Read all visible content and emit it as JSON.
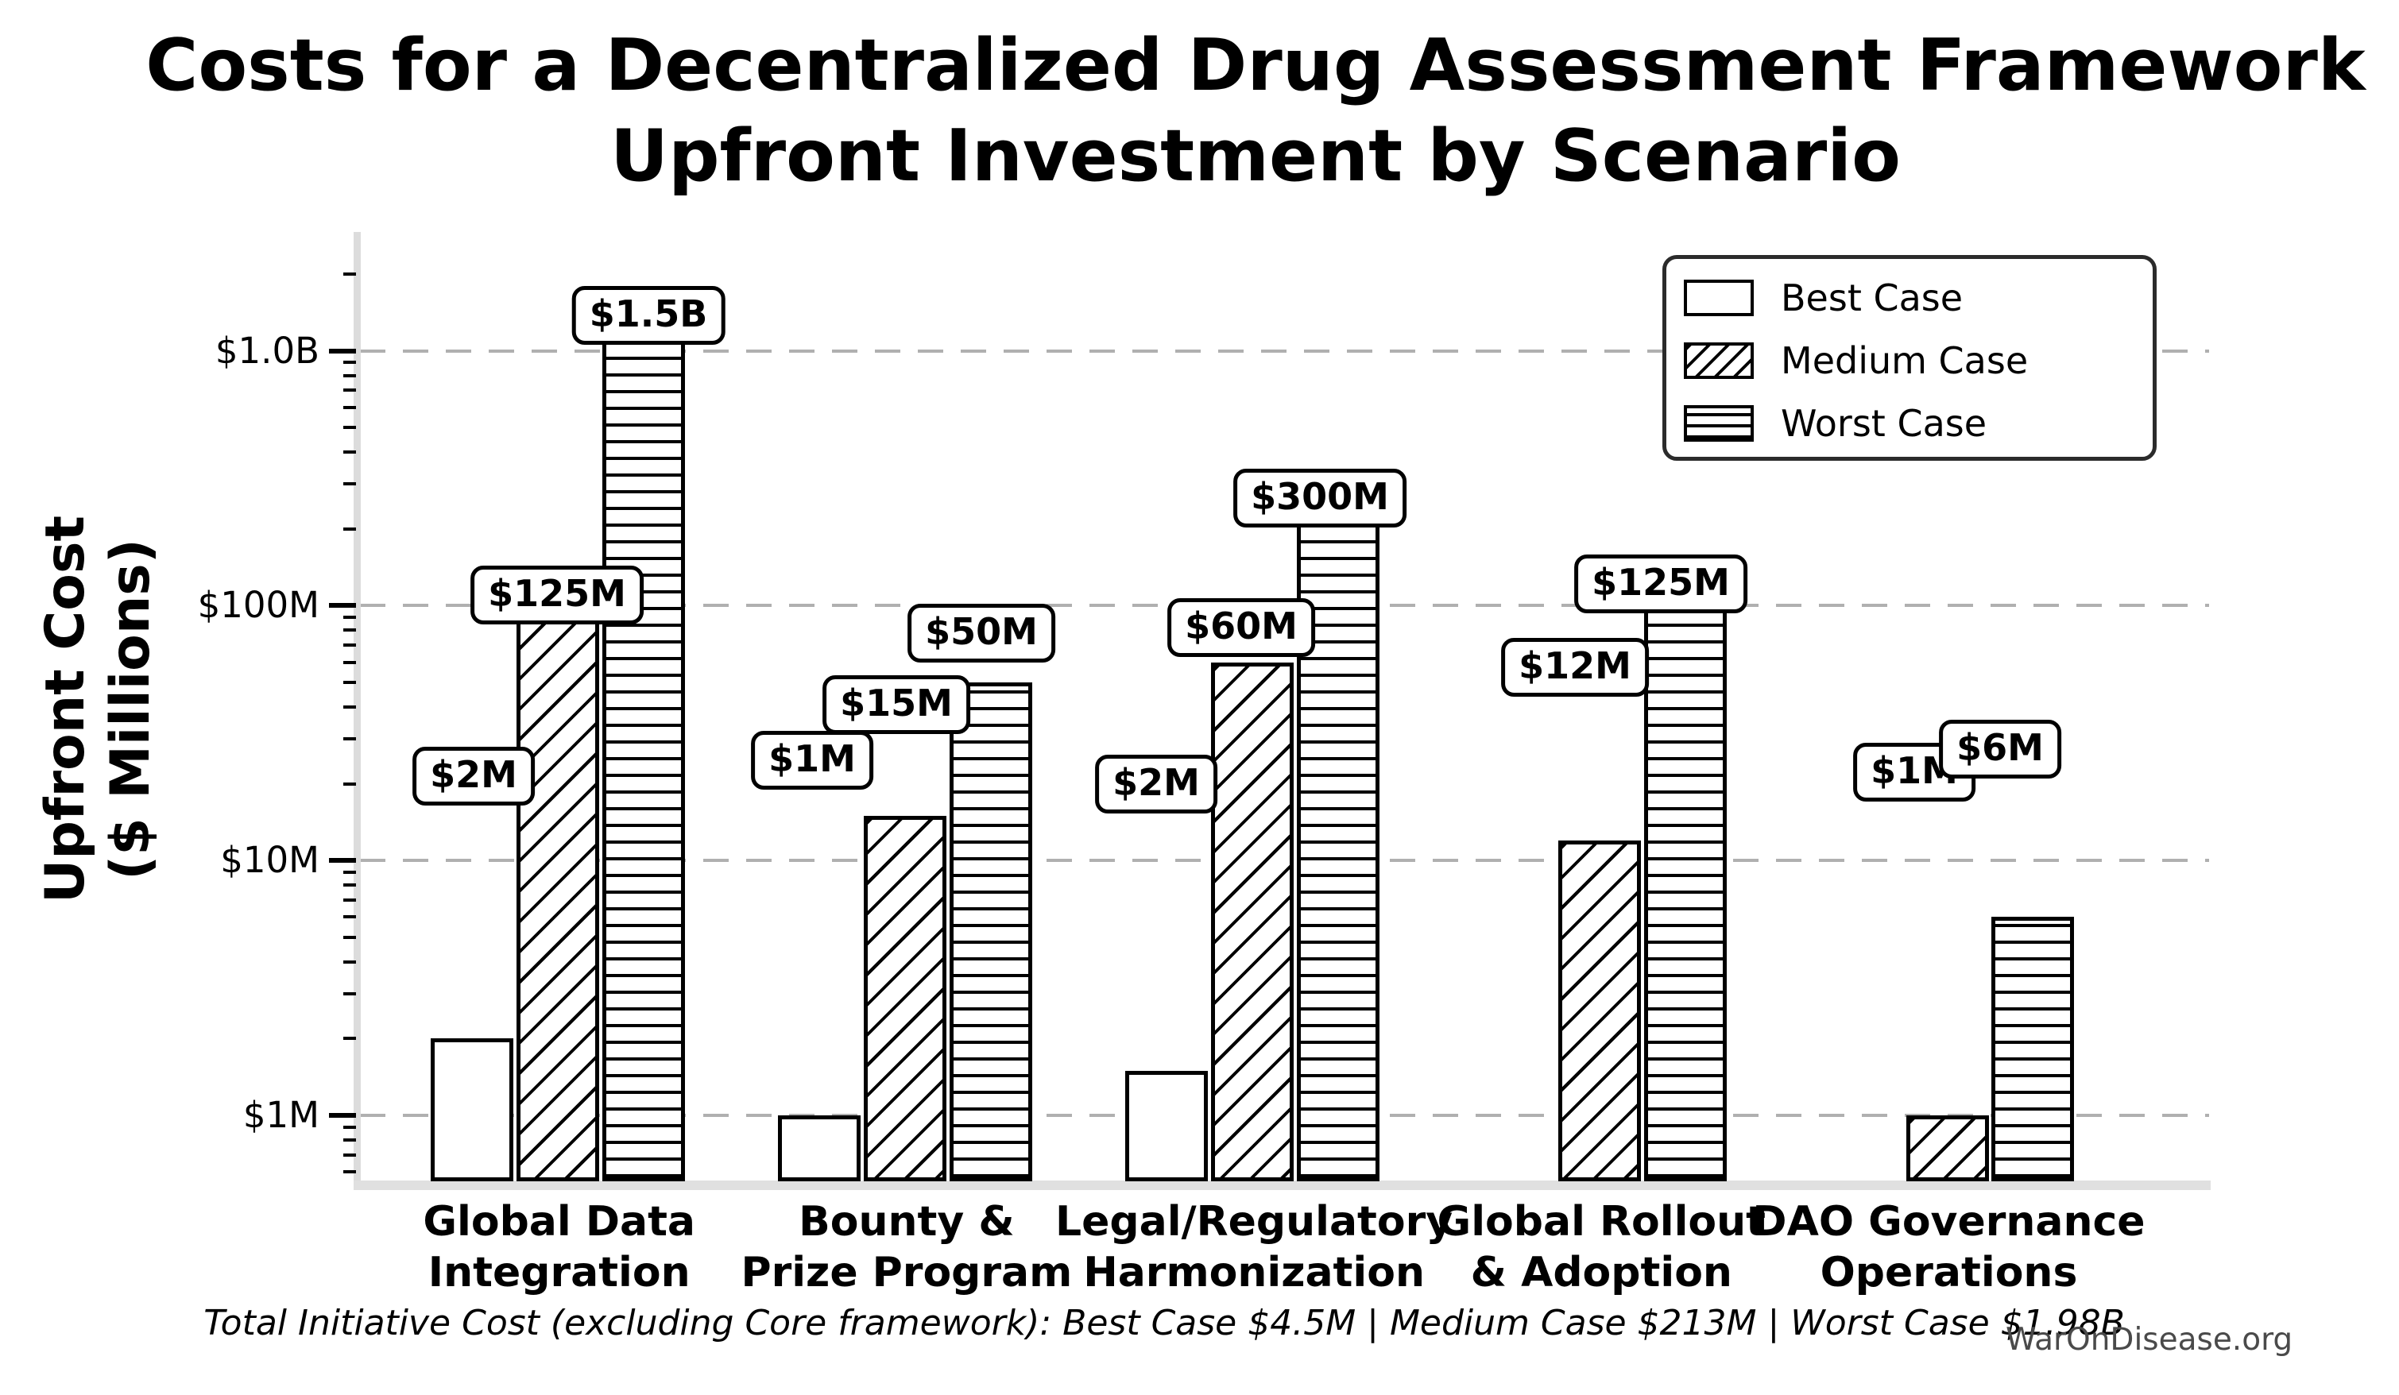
{
  "title": {
    "line1": "Costs for a Decentralized Drug Assessment Framework",
    "line2": "Upfront Investment by Scenario"
  },
  "y_axis_label": {
    "line1": "Upfront Cost",
    "line2": "($ Millions)"
  },
  "footnote": "Total Initiative Cost (excluding Core framework): Best Case $4.5M | Medium Case $213M | Worst Case $1.98B",
  "watermark": "WarOnDisease.org",
  "colors": {
    "bar_fill": "#ffffff",
    "bar_edge": "#000000",
    "gridline": "#b0b0b0",
    "spine": "#dcdcdc",
    "watermark": "#4a4a4a",
    "text": "#000000",
    "background": "#ffffff"
  },
  "chart_data": {
    "type": "bar",
    "y_scale": "log",
    "unit": "USD millions",
    "title": "Costs for a Decentralized Drug Assessment Framework — Upfront Investment by Scenario",
    "xlabel": "",
    "ylabel": "Upfront Cost ($ Millions)",
    "grid": "horizontal dashed at each decade",
    "legend_position": "upper right",
    "ylim_millions": [
      0.55,
      2900
    ],
    "categories": [
      "Global Data\nIntegration",
      "Bounty &\nPrize Program",
      "Legal/Regulatory\nHarmonization",
      "Global Rollout\n& Adoption",
      "DAO Governance\nOperations"
    ],
    "series": [
      {
        "name": "Best Case",
        "hatch": "none",
        "values": [
          2,
          1,
          1.5,
          null,
          null
        ],
        "labels": [
          "$2M",
          "$1M",
          "$2M",
          null,
          null
        ]
      },
      {
        "name": "Medium Case",
        "hatch": "diagonal",
        "values": [
          125,
          15,
          60,
          12,
          1
        ],
        "labels": [
          "$125M",
          "$15M",
          "$60M",
          "$12M",
          "$1M"
        ]
      },
      {
        "name": "Worst Case",
        "hatch": "horizontal",
        "values": [
          1500,
          50,
          300,
          125,
          6
        ],
        "labels": [
          "$1.5B",
          "$50M",
          "$300M",
          "$125M",
          "$6M"
        ]
      }
    ],
    "y_ticks": [
      {
        "value": 1,
        "label": "$1M"
      },
      {
        "value": 10,
        "label": "$10M"
      },
      {
        "value": 100,
        "label": "$100M"
      },
      {
        "value": 1000,
        "label": "$1.0B"
      }
    ],
    "totals": {
      "Best Case": "$4.5M",
      "Medium Case": "$213M",
      "Worst Case": "$1.98B"
    }
  }
}
